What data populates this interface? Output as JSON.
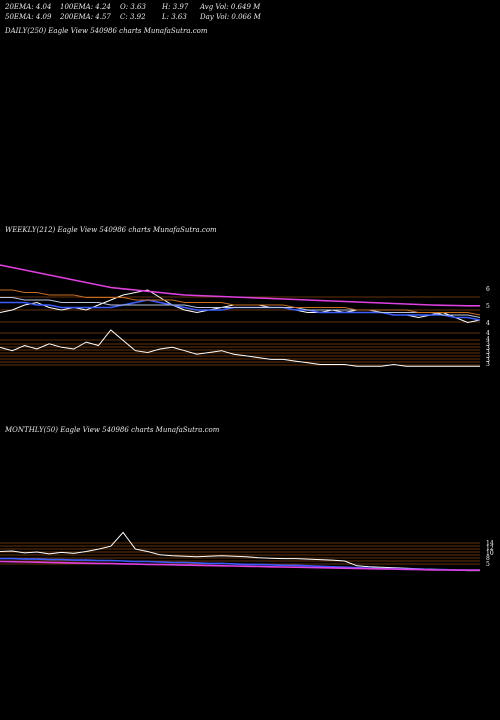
{
  "header": {
    "row1": [
      {
        "label": "20EMA: 4.04"
      },
      {
        "label": "100EMA: 4.24"
      },
      {
        "label": "O: 3.63"
      },
      {
        "label": "H: 3.97"
      },
      {
        "label": "Avg Vol: 0.649 M"
      }
    ],
    "row2": [
      {
        "label": "50EMA: 4.09"
      },
      {
        "label": "200EMA: 4.57"
      },
      {
        "label": "C: 3.92"
      },
      {
        "label": "L: 3.63"
      },
      {
        "label": "Day Vol: 0.066 M"
      }
    ]
  },
  "panels": {
    "daily": {
      "title": "DAILY(250) Eagle View 540986 charts MunafaSutra.com"
    },
    "weekly": {
      "title": "WEEKLY(212) Eagle View 540986 charts MunafaSutra.com"
    },
    "monthly": {
      "title": "MONTHLY(50) Eagle View 540986 charts MunafaSutra.com"
    }
  },
  "colors": {
    "price": "#ffffff",
    "ema20": "#3a5cff",
    "ema50": "#b8c4e0",
    "ema100": "#c86e1e",
    "ema200": "#e040e0",
    "level_lines": "#c86414",
    "background": "#000000"
  },
  "chart_data": [
    {
      "type": "line",
      "title": "WEEKLY(212) Eagle View 540986 charts MunafaSutra.com",
      "y_tick_labels": [
        "6",
        "5",
        "4",
        "4",
        "4",
        "3",
        "3",
        "3",
        "3",
        "3",
        "3"
      ],
      "series": [
        {
          "color_key": "price",
          "values": [
            4.3,
            4.4,
            4.6,
            4.7,
            4.5,
            4.4,
            4.5,
            4.4,
            4.6,
            4.8,
            5.0,
            5.1,
            5.2,
            4.9,
            4.6,
            4.4,
            4.3,
            4.4,
            4.5,
            4.6,
            4.6,
            4.6,
            4.5,
            4.5,
            4.4,
            4.3,
            4.3,
            4.4,
            4.3,
            4.4,
            4.4,
            4.3,
            4.2,
            4.2,
            4.1,
            4.2,
            4.3,
            4.1,
            3.9,
            4.0
          ]
        },
        {
          "color_key": "ema20",
          "values": [
            4.7,
            4.7,
            4.7,
            4.6,
            4.6,
            4.5,
            4.5,
            4.5,
            4.5,
            4.5,
            4.6,
            4.7,
            4.8,
            4.7,
            4.6,
            4.5,
            4.4,
            4.4,
            4.4,
            4.5,
            4.5,
            4.5,
            4.5,
            4.5,
            4.4,
            4.4,
            4.3,
            4.3,
            4.3,
            4.3,
            4.3,
            4.3,
            4.2,
            4.2,
            4.2,
            4.2,
            4.2,
            4.1,
            4.1,
            4.0
          ]
        },
        {
          "color_key": "ema50",
          "values": [
            4.9,
            4.9,
            4.8,
            4.8,
            4.8,
            4.7,
            4.7,
            4.7,
            4.7,
            4.6,
            4.6,
            4.6,
            4.6,
            4.6,
            4.6,
            4.6,
            4.5,
            4.5,
            4.5,
            4.5,
            4.5,
            4.5,
            4.5,
            4.5,
            4.5,
            4.4,
            4.4,
            4.4,
            4.4,
            4.4,
            4.4,
            4.3,
            4.3,
            4.3,
            4.3,
            4.3,
            4.2,
            4.2,
            4.2,
            4.1
          ]
        },
        {
          "color_key": "ema100",
          "values": [
            5.2,
            5.2,
            5.1,
            5.1,
            5.0,
            5.0,
            5.0,
            4.9,
            4.9,
            4.9,
            4.9,
            4.8,
            4.8,
            4.8,
            4.8,
            4.7,
            4.7,
            4.7,
            4.7,
            4.6,
            4.6,
            4.6,
            4.6,
            4.6,
            4.5,
            4.5,
            4.5,
            4.5,
            4.5,
            4.4,
            4.4,
            4.4,
            4.4,
            4.4,
            4.3,
            4.3,
            4.3,
            4.3,
            4.3,
            4.2
          ]
        },
        {
          "color_key": "ema200",
          "values": [
            6.2,
            6.1,
            6.0,
            5.9,
            5.8,
            5.7,
            5.6,
            5.5,
            5.4,
            5.3,
            5.25,
            5.2,
            5.15,
            5.1,
            5.05,
            5.0,
            4.98,
            4.96,
            4.94,
            4.92,
            4.9,
            4.88,
            4.86,
            4.84,
            4.82,
            4.8,
            4.78,
            4.76,
            4.74,
            4.72,
            4.7,
            4.68,
            4.66,
            4.64,
            4.62,
            4.6,
            4.59,
            4.58,
            4.57,
            4.57
          ]
        },
        {
          "color_key": "price",
          "role": "volume",
          "values": [
            1.2,
            1.0,
            1.3,
            1.1,
            1.4,
            1.2,
            1.1,
            1.5,
            1.3,
            2.2,
            1.6,
            1.0,
            0.9,
            1.1,
            1.2,
            1.0,
            0.8,
            0.9,
            1.0,
            0.8,
            0.7,
            0.6,
            0.5,
            0.5,
            0.4,
            0.3,
            0.2,
            0.2,
            0.2,
            0.1,
            0.1,
            0.1,
            0.2,
            0.1,
            0.1,
            0.1,
            0.1,
            0.1,
            0.1,
            0.1
          ]
        }
      ]
    },
    {
      "type": "line",
      "title": "MONTHLY(50) Eagle View 540986 charts MunafaSutra.com",
      "y_tick_labels": [
        "14",
        "12",
        "10",
        "8",
        "5"
      ],
      "series": [
        {
          "color_key": "price",
          "values": [
            8.5,
            8.6,
            8.2,
            8.4,
            8.0,
            8.3,
            8.1,
            8.5,
            9.0,
            9.6,
            12.5,
            9.0,
            8.5,
            7.8,
            7.6,
            7.5,
            7.4,
            7.5,
            7.6,
            7.5,
            7.4,
            7.2,
            7.1,
            7.0,
            7.0,
            6.9,
            6.8,
            6.7,
            6.5,
            5.5,
            5.3,
            5.2,
            5.1,
            5.0,
            4.9,
            4.8,
            4.7,
            4.6,
            4.5,
            4.5
          ]
        },
        {
          "color_key": "ema20",
          "values": [
            7.0,
            7.0,
            6.9,
            6.9,
            6.8,
            6.8,
            6.7,
            6.7,
            6.6,
            6.6,
            6.5,
            6.4,
            6.4,
            6.3,
            6.2,
            6.2,
            6.1,
            6.0,
            6.0,
            5.9,
            5.8,
            5.8,
            5.7,
            5.6,
            5.6,
            5.5,
            5.4,
            5.3,
            5.2,
            5.1,
            5.0,
            4.9,
            4.9,
            4.8,
            4.8,
            4.7,
            4.7,
            4.6,
            4.6,
            4.6
          ]
        },
        {
          "color_key": "ema200",
          "values": [
            6.4,
            6.35,
            6.3,
            6.25,
            6.2,
            6.15,
            6.1,
            6.05,
            6.0,
            5.95,
            5.9,
            5.85,
            5.8,
            5.75,
            5.7,
            5.65,
            5.6,
            5.55,
            5.5,
            5.45,
            5.4,
            5.35,
            5.3,
            5.25,
            5.2,
            5.15,
            5.1,
            5.05,
            5.0,
            4.95,
            4.9,
            4.85,
            4.8,
            4.75,
            4.7,
            4.65,
            4.62,
            4.6,
            4.58,
            4.57
          ]
        }
      ]
    }
  ]
}
